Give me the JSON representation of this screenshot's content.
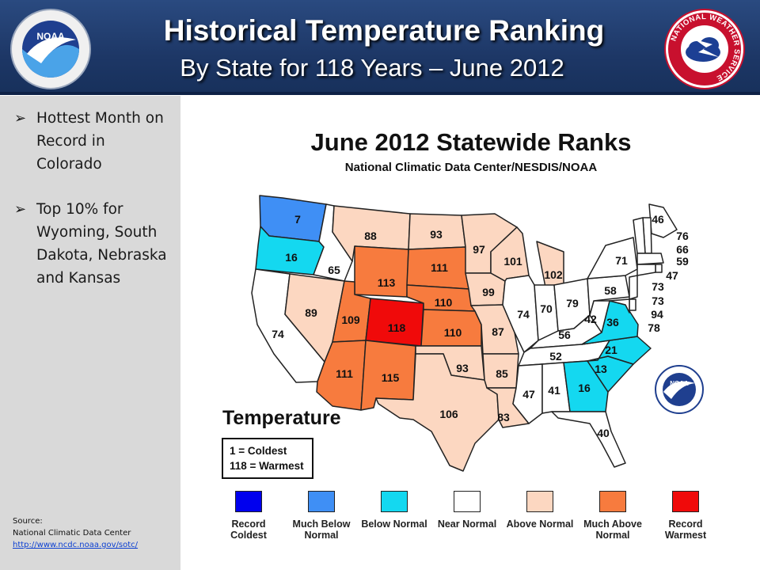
{
  "header": {
    "title": "Historical Temperature Ranking",
    "subtitle": "By State for 118 Years – June 2012",
    "logo_left": "noaa-logo",
    "logo_right": "national-weather-service-logo",
    "logo_right_text": "NATIONAL WEATHER SERVICE",
    "colors": {
      "header_bg": "#1d3766"
    }
  },
  "sidebar": {
    "bullets": [
      "Hottest Month on Record in Colorado",
      "Top 10% for Wyoming, South Dakota, Nebraska and Kansas"
    ],
    "source": {
      "label": "Source:",
      "org": "National Climatic Data Center",
      "link": "http://www.ncdc.noaa.gov/sotc/"
    }
  },
  "map": {
    "title": "June 2012 Statewide Ranks",
    "subtitle": "National Climatic Data Center/NESDIS/NOAA",
    "temperature_label": "Temperature",
    "key": {
      "line1": "1 = Coldest",
      "line2": "118 = Warmest"
    },
    "states": [
      {
        "name": "Washington",
        "rank": "7",
        "category": "much_below"
      },
      {
        "name": "Oregon",
        "rank": "16",
        "category": "below"
      },
      {
        "name": "California",
        "rank": "74",
        "category": "near"
      },
      {
        "name": "Idaho",
        "rank": "65",
        "category": "near"
      },
      {
        "name": "Nevada",
        "rank": "89",
        "category": "above"
      },
      {
        "name": "Montana",
        "rank": "88",
        "category": "above"
      },
      {
        "name": "Wyoming",
        "rank": "113",
        "category": "much_above"
      },
      {
        "name": "Utah",
        "rank": "109",
        "category": "much_above"
      },
      {
        "name": "Colorado",
        "rank": "118",
        "category": "record_warmest"
      },
      {
        "name": "Arizona",
        "rank": "111",
        "category": "much_above"
      },
      {
        "name": "New Mexico",
        "rank": "115",
        "category": "much_above"
      },
      {
        "name": "North Dakota",
        "rank": "93",
        "category": "above"
      },
      {
        "name": "South Dakota",
        "rank": "111",
        "category": "much_above"
      },
      {
        "name": "Nebraska",
        "rank": "110",
        "category": "much_above"
      },
      {
        "name": "Kansas",
        "rank": "110",
        "category": "much_above"
      },
      {
        "name": "Oklahoma",
        "rank": "93",
        "category": "above"
      },
      {
        "name": "Texas",
        "rank": "106",
        "category": "above"
      },
      {
        "name": "Minnesota",
        "rank": "97",
        "category": "above"
      },
      {
        "name": "Iowa",
        "rank": "99",
        "category": "above"
      },
      {
        "name": "Missouri",
        "rank": "87",
        "category": "above"
      },
      {
        "name": "Arkansas",
        "rank": "85",
        "category": "above"
      },
      {
        "name": "Louisiana",
        "rank": "83",
        "category": "above"
      },
      {
        "name": "Wisconsin",
        "rank": "101",
        "category": "above"
      },
      {
        "name": "Michigan",
        "rank": "102",
        "category": "above"
      },
      {
        "name": "Illinois",
        "rank": "74",
        "category": "near"
      },
      {
        "name": "Indiana",
        "rank": "70",
        "category": "near"
      },
      {
        "name": "Ohio",
        "rank": "79",
        "category": "near"
      },
      {
        "name": "Kentucky",
        "rank": "56",
        "category": "near"
      },
      {
        "name": "Tennessee",
        "rank": "52",
        "category": "near"
      },
      {
        "name": "Mississippi",
        "rank": "47",
        "category": "near"
      },
      {
        "name": "Alabama",
        "rank": "41",
        "category": "near"
      },
      {
        "name": "Georgia",
        "rank": "16",
        "category": "below"
      },
      {
        "name": "Florida",
        "rank": "40",
        "category": "near"
      },
      {
        "name": "South Carolina",
        "rank": "13",
        "category": "below"
      },
      {
        "name": "North Carolina",
        "rank": "21",
        "category": "below"
      },
      {
        "name": "Virginia",
        "rank": "36",
        "category": "below"
      },
      {
        "name": "West Virginia",
        "rank": "42",
        "category": "near"
      },
      {
        "name": "Pennsylvania",
        "rank": "58",
        "category": "near"
      },
      {
        "name": "New York",
        "rank": "71",
        "category": "near"
      },
      {
        "name": "Maine",
        "rank": "46",
        "category": "near"
      },
      {
        "name": "New Hampshire",
        "rank": "76",
        "category": "near"
      },
      {
        "name": "Vermont",
        "rank": "66",
        "category": "near"
      },
      {
        "name": "Massachusetts",
        "rank": "59",
        "category": "near"
      },
      {
        "name": "Rhode Island",
        "rank": "47",
        "category": "near"
      },
      {
        "name": "Connecticut",
        "rank": "73",
        "category": "near"
      },
      {
        "name": "New Jersey",
        "rank": "73",
        "category": "near"
      },
      {
        "name": "Delaware",
        "rank": "94",
        "category": "near"
      },
      {
        "name": "Maryland",
        "rank": "78",
        "category": "near"
      }
    ],
    "legend": [
      {
        "key": "record_coldest",
        "label": "Record Coldest",
        "color": "#0000ee"
      },
      {
        "key": "much_below",
        "label": "Much Below Normal",
        "color": "#3f8ff5"
      },
      {
        "key": "below",
        "label": "Below Normal",
        "color": "#14d8f0"
      },
      {
        "key": "near",
        "label": "Near Normal",
        "color": "#ffffff"
      },
      {
        "key": "above",
        "label": "Above Normal",
        "color": "#fcd7c1"
      },
      {
        "key": "much_above",
        "label": "Much Above Normal",
        "color": "#f77b3e"
      },
      {
        "key": "record_warmest",
        "label": "Record Warmest",
        "color": "#f00a0a"
      }
    ]
  }
}
